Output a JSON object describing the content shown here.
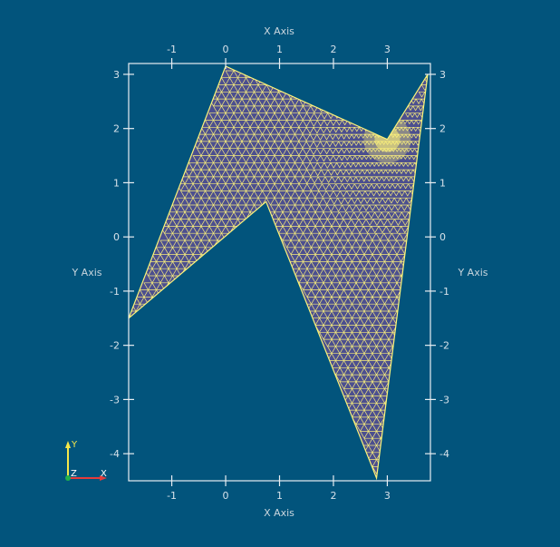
{
  "view": {
    "background": "#02547c",
    "mesh_fill": "#4c4f8f",
    "mesh_edge": "#fff47a"
  },
  "axes": {
    "x_title_top": "X Axis",
    "x_title_bottom": "X Axis",
    "y_title_left": "Y Axis",
    "y_title_right": "Y Axis",
    "x_ticks": [
      "-1",
      "0",
      "1",
      "2",
      "3"
    ],
    "y_ticks": [
      "3",
      "2",
      "1",
      "0",
      "-1",
      "-2",
      "-3",
      "-4"
    ]
  },
  "orientation": {
    "y_label": "Y",
    "z_label": "Z",
    "x_label": "X"
  },
  "chart_data": {
    "type": "scatter",
    "title": "",
    "xlabel": "X Axis",
    "ylabel": "Y Axis",
    "xlim": [
      -1.8,
      3.8
    ],
    "ylim": [
      -4.5,
      3.2
    ],
    "polygon_vertices": [
      {
        "x": 0.0,
        "y": 3.15
      },
      {
        "x": 3.0,
        "y": 1.8
      },
      {
        "x": 3.75,
        "y": 3.0
      },
      {
        "x": 2.8,
        "y": -4.45
      },
      {
        "x": 0.75,
        "y": 0.65
      },
      {
        "x": -1.8,
        "y": -1.5
      }
    ],
    "grid": false
  }
}
